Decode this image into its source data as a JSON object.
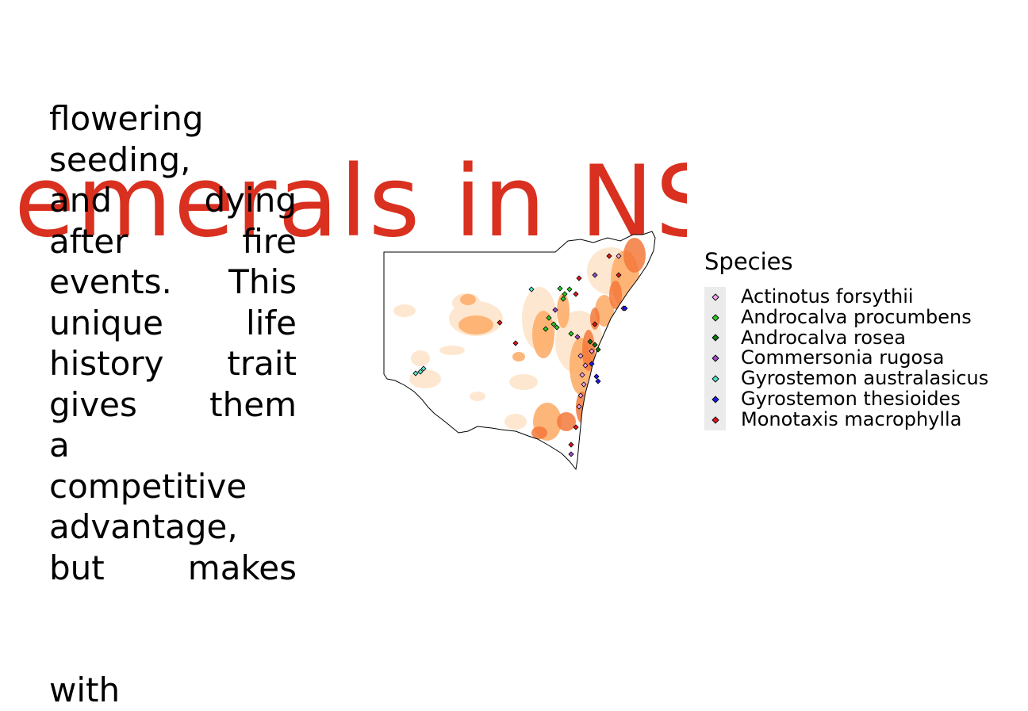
{
  "title": "emerals in NS",
  "body_lines": [
    "flowering",
    "seeding,",
    "and dying",
    "after fire",
    "events. This",
    "unique life",
    "history trait",
    "gives them",
    "a",
    "competitive",
    "advantage,",
    "but makes",
    "with"
  ],
  "map": {
    "region": "New South Wales",
    "fill_color": "#ffffff",
    "outline_color": "#000000",
    "fire_colors": [
      "#fee6ce",
      "#fdae6b",
      "#f4793b"
    ]
  },
  "legend": {
    "title": "Species",
    "items": [
      {
        "label": "Actinotus forsythii",
        "color": "#f2a3f0"
      },
      {
        "label": "Androcalva procumbens",
        "color": "#22d11f"
      },
      {
        "label": "Androcalva rosea",
        "color": "#0a7a10"
      },
      {
        "label": "Commersonia rugosa",
        "color": "#a349c9"
      },
      {
        "label": "Gyrostemon australasicus",
        "color": "#4ee6cf"
      },
      {
        "label": "Gyrostemon thesioides",
        "color": "#1a1aff"
      },
      {
        "label": "Monotaxis macrophylla",
        "color": "#e8141b"
      }
    ]
  }
}
